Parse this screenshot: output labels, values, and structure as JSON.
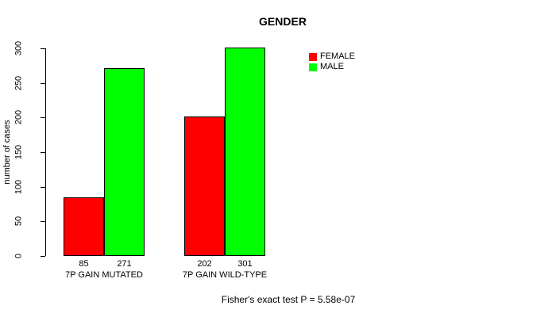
{
  "title": "GENDER",
  "footer": "Fisher's exact test P = 5.58e-07",
  "legend": {
    "items": [
      {
        "label": "FEMALE",
        "color": "#ff0000"
      },
      {
        "label": "MALE",
        "color": "#00ff00"
      }
    ]
  },
  "chart_data": {
    "type": "bar",
    "title": "GENDER",
    "xlabel": "",
    "ylabel": "number of cases",
    "ylim": [
      0,
      300
    ],
    "yticks": [
      0,
      50,
      100,
      150,
      200,
      250,
      300
    ],
    "grid": false,
    "legend_position": "right-inside",
    "categories": [
      "7P GAIN MUTATED",
      "7P GAIN WILD-TYPE"
    ],
    "series": [
      {
        "name": "FEMALE",
        "color": "#ff0000",
        "values": [
          85,
          202
        ]
      },
      {
        "name": "MALE",
        "color": "#00ff00",
        "values": [
          271,
          301
        ]
      }
    ],
    "bar_value_labels": [
      [
        85,
        271
      ],
      [
        202,
        301
      ]
    ],
    "annotation": "Fisher's exact test P = 5.58e-07"
  }
}
